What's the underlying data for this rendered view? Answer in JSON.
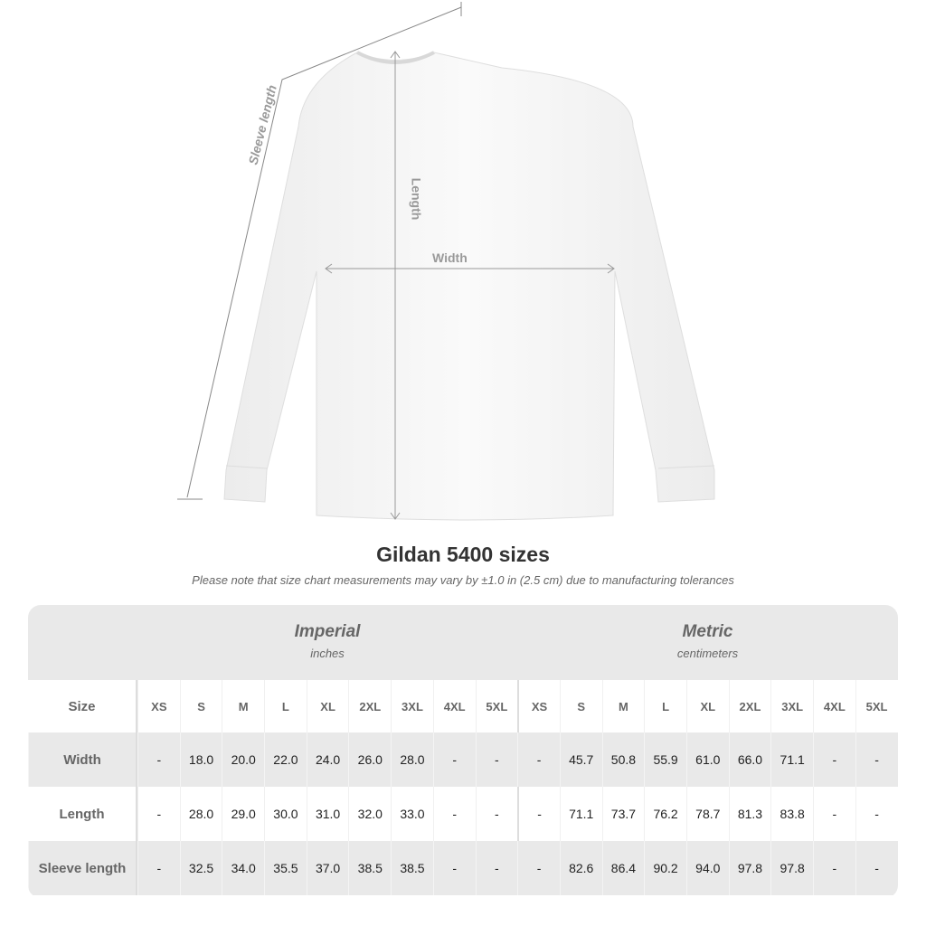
{
  "diagram": {
    "sleeve_label": "Sleeve length",
    "length_label": "Length",
    "width_label": "Width"
  },
  "title": "Gildan 5400 sizes",
  "subtitle": "Please note that size chart measurements may vary by ±1.0 in (2.5 cm) due to manufacturing tolerances",
  "table": {
    "imperial": {
      "title": "Imperial",
      "unit": "inches"
    },
    "metric": {
      "title": "Metric",
      "unit": "centimeters"
    },
    "size_label": "Size",
    "sizes": [
      "XS",
      "S",
      "M",
      "L",
      "XL",
      "2XL",
      "3XL",
      "4XL",
      "5XL"
    ],
    "rows": [
      {
        "label": "Width",
        "imperial": [
          "-",
          "18.0",
          "20.0",
          "22.0",
          "24.0",
          "26.0",
          "28.0",
          "-",
          "-"
        ],
        "metric": [
          "-",
          "45.7",
          "50.8",
          "55.9",
          "61.0",
          "66.0",
          "71.1",
          "-",
          "-"
        ]
      },
      {
        "label": "Length",
        "imperial": [
          "-",
          "28.0",
          "29.0",
          "30.0",
          "31.0",
          "32.0",
          "33.0",
          "-",
          "-"
        ],
        "metric": [
          "-",
          "71.1",
          "73.7",
          "76.2",
          "78.7",
          "81.3",
          "83.8",
          "-",
          "-"
        ]
      },
      {
        "label": "Sleeve length",
        "imperial": [
          "-",
          "32.5",
          "34.0",
          "35.5",
          "37.0",
          "38.5",
          "38.5",
          "-",
          "-"
        ],
        "metric": [
          "-",
          "82.6",
          "86.4",
          "90.2",
          "94.0",
          "97.8",
          "97.8",
          "-",
          "-"
        ]
      }
    ]
  }
}
